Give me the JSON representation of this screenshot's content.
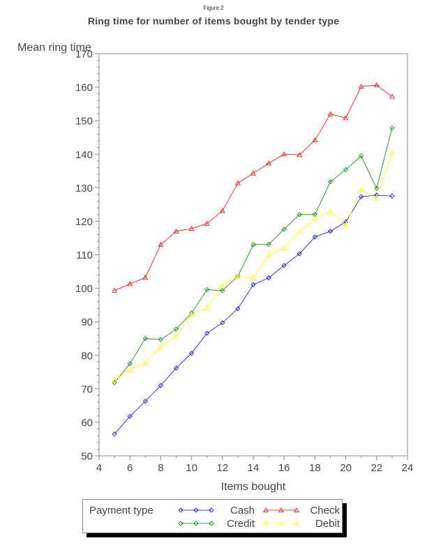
{
  "figure_label": "Figure 2",
  "chart_data": {
    "type": "line",
    "title": "Ring time for number of items bought by tender type",
    "xlabel": "Items bought",
    "ylabel": "Mean ring time",
    "xlim": [
      4,
      24
    ],
    "ylim": [
      50,
      170
    ],
    "xticks": [
      4,
      6,
      8,
      10,
      12,
      14,
      16,
      18,
      20,
      22,
      24
    ],
    "yticks": [
      50,
      60,
      70,
      80,
      90,
      100,
      110,
      120,
      130,
      140,
      150,
      160,
      170
    ],
    "x": [
      5,
      6,
      7,
      8,
      9,
      10,
      11,
      12,
      13,
      14,
      15,
      16,
      17,
      18,
      19,
      20,
      21,
      22,
      23
    ],
    "legend_title": "Payment type",
    "legend_position": "bottom",
    "grid": false,
    "series": [
      {
        "name": "Cash",
        "color": "#0000ff",
        "marker": "diamond-icon",
        "values": [
          56.5,
          61.8,
          66.3,
          71.0,
          76.2,
          80.6,
          86.6,
          89.7,
          93.9,
          101.1,
          103.1,
          106.8,
          110.3,
          115.3,
          117.0,
          119.8,
          127.3,
          127.8,
          127.5
        ]
      },
      {
        "name": "Credit",
        "color": "#008000",
        "marker": "diamond-icon",
        "values": [
          71.8,
          77.5,
          85.0,
          84.7,
          87.8,
          92.6,
          99.6,
          99.3,
          103.6,
          113.0,
          113.1,
          117.6,
          122.0,
          122.0,
          131.8,
          135.4,
          139.5,
          129.8,
          147.8
        ]
      },
      {
        "name": "Check",
        "color": "#ff0000",
        "marker": "triangle-icon",
        "values": [
          99.3,
          101.3,
          103.2,
          113.0,
          117.0,
          117.8,
          119.3,
          123.1,
          131.4,
          134.3,
          137.3,
          140.0,
          139.8,
          144.2,
          152.0,
          150.8,
          160.2,
          160.6,
          157.2
        ]
      },
      {
        "name": "Debit",
        "color": "#ffff00",
        "marker": "triangle-icon",
        "values": [
          72.6,
          75.6,
          77.7,
          82.5,
          85.6,
          92.1,
          94.1,
          100.8,
          103.6,
          103.1,
          109.9,
          112.0,
          116.9,
          120.6,
          122.9,
          118.9,
          129.4,
          126.7,
          140.5
        ]
      }
    ]
  }
}
